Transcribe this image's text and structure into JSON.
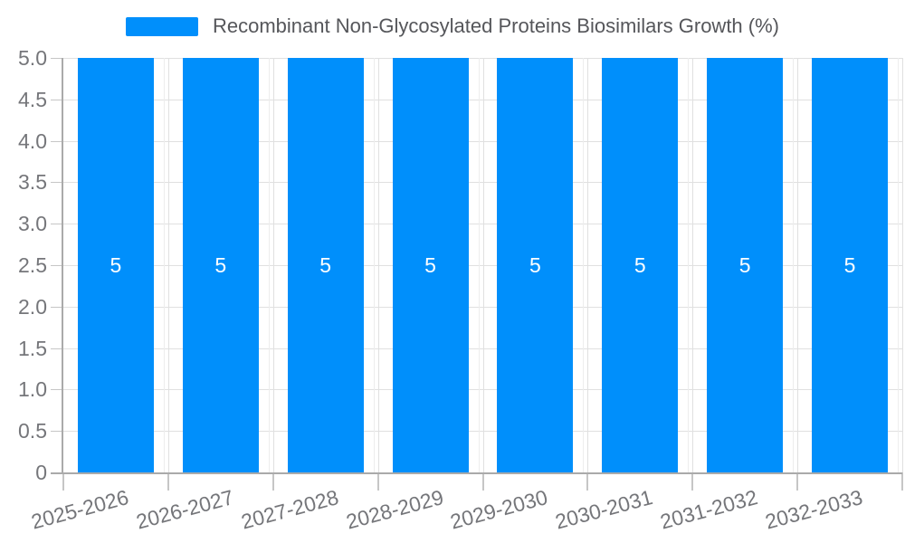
{
  "legend": {
    "label": "Recombinant Non-Glycosylated Proteins Biosimilars Growth (%)"
  },
  "chart_data": {
    "type": "bar",
    "title": "Recombinant Non-Glycosylated Proteins Biosimilars Growth (%)",
    "categories": [
      "2025-2026",
      "2026-2027",
      "2027-2028",
      "2028-2029",
      "2029-2030",
      "2030-2031",
      "2031-2032",
      "2032-2033"
    ],
    "series": [
      {
        "name": "Recombinant Non-Glycosylated Proteins Biosimilars Growth (%)",
        "values": [
          5,
          5,
          5,
          5,
          5,
          5,
          5,
          5
        ]
      }
    ],
    "bar_value_labels": [
      "5",
      "5",
      "5",
      "5",
      "5",
      "5",
      "5",
      "5"
    ],
    "ylim": [
      0,
      5
    ],
    "ytick_labels": [
      "0",
      "0.5",
      "1.0",
      "1.5",
      "2.0",
      "2.5",
      "3.0",
      "3.5",
      "4.0",
      "4.5",
      "5.0"
    ],
    "grid": "on",
    "legend_position": "top",
    "xlabel_rotation_deg": -15,
    "colors": {
      "bar": "#008ffb",
      "grid": "#e0e0e0",
      "grid_secondary": "#ededed",
      "axis_line": "#aaaaaa",
      "tick_mark": "#c6c6c6",
      "axis_label": "#75767a",
      "data_label": "#ffffff",
      "legend_text": "#55565a",
      "background": "#ffffff"
    }
  }
}
